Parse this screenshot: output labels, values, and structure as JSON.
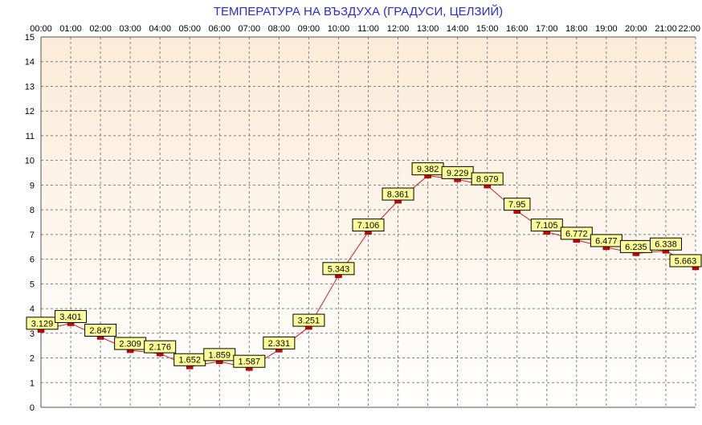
{
  "chart_data": {
    "type": "line",
    "title": "ТЕМПЕРАТУРА НА ВЪЗДУХА  (ГРАДУСИ, ЦЕЛЗИЙ)",
    "xlabel": "",
    "ylabel": "",
    "categories": [
      "00:00",
      "01:00",
      "02:00",
      "03:00",
      "04:00",
      "05:00",
      "06:00",
      "07:00",
      "08:00",
      "09:00",
      "10:00",
      "11:00",
      "12:00",
      "13:00",
      "14:00",
      "15:00",
      "16:00",
      "17:00",
      "18:00",
      "19:00",
      "20:00",
      "21:00",
      "22:00"
    ],
    "series": [
      {
        "values": [
          3.129,
          3.401,
          2.847,
          2.309,
          2.176,
          1.652,
          1.859,
          1.587,
          2.331,
          3.251,
          5.343,
          7.106,
          8.361,
          9.382,
          9.229,
          8.979,
          7.95,
          7.105,
          6.772,
          6.477,
          6.235,
          6.338,
          5.663
        ],
        "labels": [
          "3.129",
          "3.401",
          "2.847",
          "2.309",
          "2.176",
          "1.652",
          "1.859",
          "1.587",
          "2.331",
          "3.251",
          "5.343",
          "7.106",
          "8.361",
          "9.382",
          "9.229",
          "8.979",
          "7.95",
          "7.105",
          "6.772",
          "6.477",
          "6.235",
          "6.338",
          "5.663"
        ]
      }
    ],
    "ylim": [
      0,
      15
    ],
    "yticks": [
      "0",
      "1",
      "2",
      "3",
      "4",
      "5",
      "6",
      "7",
      "8",
      "9",
      "10",
      "11",
      "12",
      "13",
      "14",
      "15"
    ],
    "x_axis_position": "top",
    "grid": true,
    "data_labels": true,
    "colors": {
      "title": "#2a2ad6",
      "line": "#cc2222",
      "marker": "#cc0000",
      "label_fill": "#ffff99",
      "grid": "#808080",
      "background_top": "#fcebd8",
      "background_bottom": "#ffffff"
    }
  }
}
